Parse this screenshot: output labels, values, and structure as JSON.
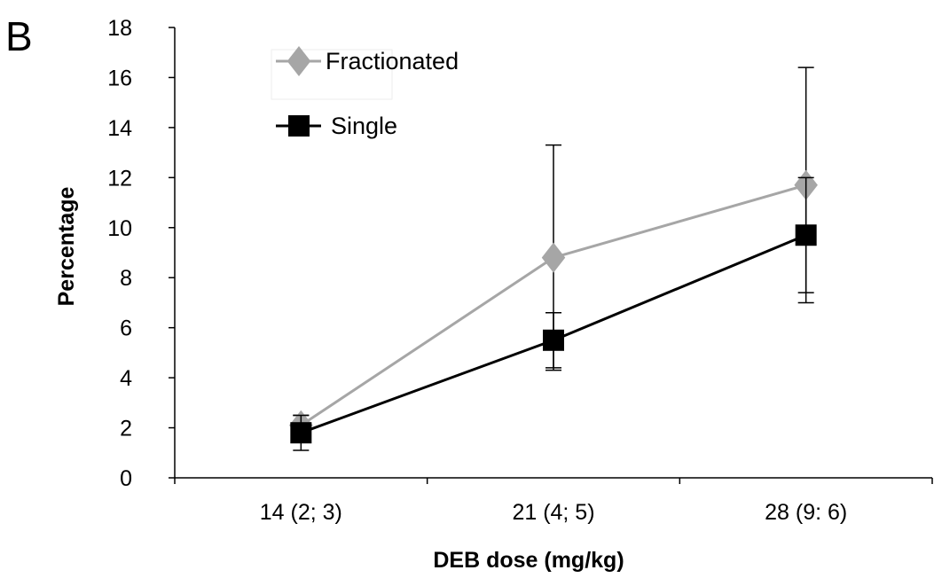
{
  "panel_label": "B",
  "chart_data": {
    "type": "line",
    "title": "",
    "xlabel": "DEB dose (mg/kg)",
    "ylabel": "Percentage",
    "ylim": [
      0,
      18
    ],
    "yticks": [
      0,
      2,
      4,
      6,
      8,
      10,
      12,
      14,
      16,
      18
    ],
    "categories": [
      "14 (2; 3)",
      "21 (4; 5)",
      "28 (9: 6)"
    ],
    "grid": false,
    "legend_position": "top-left",
    "series": [
      {
        "name": "Fractionated",
        "color": "#a6a6a6",
        "marker": "diamond",
        "values": [
          2.1,
          8.8,
          11.7
        ],
        "error": [
          0.4,
          4.5,
          4.7
        ]
      },
      {
        "name": "Single",
        "color": "#000000",
        "marker": "square",
        "values": [
          1.8,
          5.5,
          9.7
        ],
        "error": [
          0.7,
          1.1,
          2.3
        ]
      }
    ]
  }
}
